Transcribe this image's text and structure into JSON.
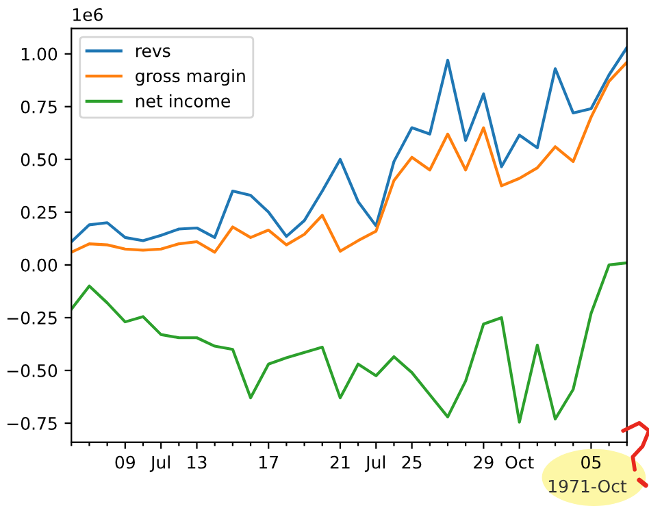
{
  "chart_data": {
    "type": "line",
    "categories": [
      null,
      null,
      null,
      "09",
      null,
      "Jul",
      null,
      "13",
      null,
      null,
      null,
      "17",
      null,
      null,
      null,
      "21",
      null,
      "Jul",
      null,
      "25",
      null,
      null,
      null,
      "29",
      null,
      "Oct",
      null,
      null,
      null,
      "05",
      null,
      null
    ],
    "series": [
      {
        "name": "revs",
        "color": "#1f77b4",
        "values": [
          0.11,
          0.19,
          0.2,
          0.13,
          0.115,
          0.14,
          0.17,
          0.175,
          0.13,
          0.35,
          0.33,
          0.25,
          0.135,
          0.21,
          0.35,
          0.5,
          0.3,
          0.185,
          0.49,
          0.65,
          0.62,
          0.97,
          0.59,
          0.81,
          0.465,
          0.615,
          0.555,
          0.93,
          0.72,
          0.74,
          0.9,
          1.03
        ]
      },
      {
        "name": "gross margin",
        "color": "#ff7f0e",
        "values": [
          0.06,
          0.1,
          0.095,
          0.075,
          0.07,
          0.075,
          0.1,
          0.11,
          0.06,
          0.18,
          0.13,
          0.165,
          0.095,
          0.145,
          0.235,
          0.065,
          0.115,
          0.16,
          0.4,
          0.51,
          0.45,
          0.62,
          0.45,
          0.65,
          0.375,
          0.41,
          0.46,
          0.56,
          0.49,
          0.7,
          0.87,
          0.96
        ]
      },
      {
        "name": "net income",
        "color": "#2ca02c",
        "values": [
          -0.21,
          -0.1,
          -0.18,
          -0.27,
          -0.245,
          -0.33,
          -0.345,
          -0.345,
          -0.385,
          -0.4,
          -0.63,
          -0.47,
          -0.44,
          -0.415,
          -0.39,
          -0.63,
          -0.47,
          -0.525,
          -0.435,
          -0.51,
          -0.615,
          -0.72,
          -0.55,
          -0.28,
          -0.25,
          -0.745,
          -0.38,
          -0.73,
          -0.59,
          -0.23,
          0.0,
          0.01
        ]
      }
    ],
    "ylim": [
      -0.84,
      1.12
    ],
    "yticks": [
      {
        "value": -0.75,
        "label": "−0.75"
      },
      {
        "value": -0.5,
        "label": "−0.50"
      },
      {
        "value": -0.25,
        "label": "−0.25"
      },
      {
        "value": 0,
        "label": "0.00"
      },
      {
        "value": 0.25,
        "label": "0.25"
      },
      {
        "value": 0.5,
        "label": "0.50"
      },
      {
        "value": 0.75,
        "label": "0.75"
      },
      {
        "value": 1.0,
        "label": "1.00"
      }
    ],
    "annotations": [
      "1e6",
      "1971-Oct"
    ],
    "legend": "top left",
    "grid": false
  }
}
